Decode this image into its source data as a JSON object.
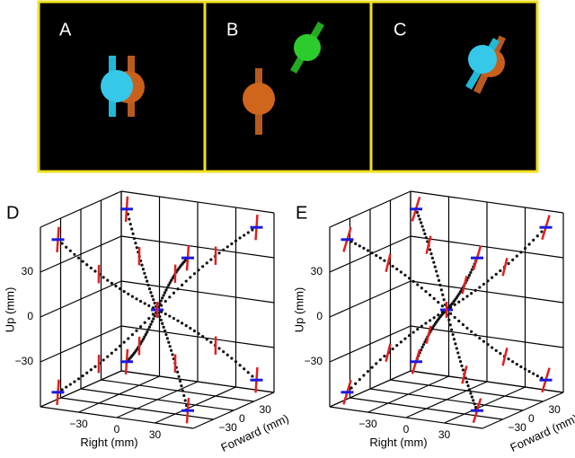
{
  "panels": [
    "A",
    "B",
    "C"
  ],
  "plots": [
    {
      "label": "D",
      "up_label": "Up (mm)",
      "right_label": "Right (mm)",
      "forward_label": "Forward (mm)",
      "up_ticks": [
        "30",
        "0",
        "−30"
      ],
      "right_ticks": [
        "−30",
        "0",
        "30"
      ],
      "forward_ticks": [
        "−30",
        "0",
        "30"
      ]
    },
    {
      "label": "E",
      "up_label": "Up (mm)",
      "right_label": "Right (mm)",
      "forward_label": "Forward (mm)",
      "up_ticks": [
        "30",
        "0",
        "−30"
      ],
      "right_ticks": [
        "−30",
        "0",
        "30"
      ],
      "forward_ticks": [
        "−30",
        "0",
        "30"
      ]
    }
  ]
}
